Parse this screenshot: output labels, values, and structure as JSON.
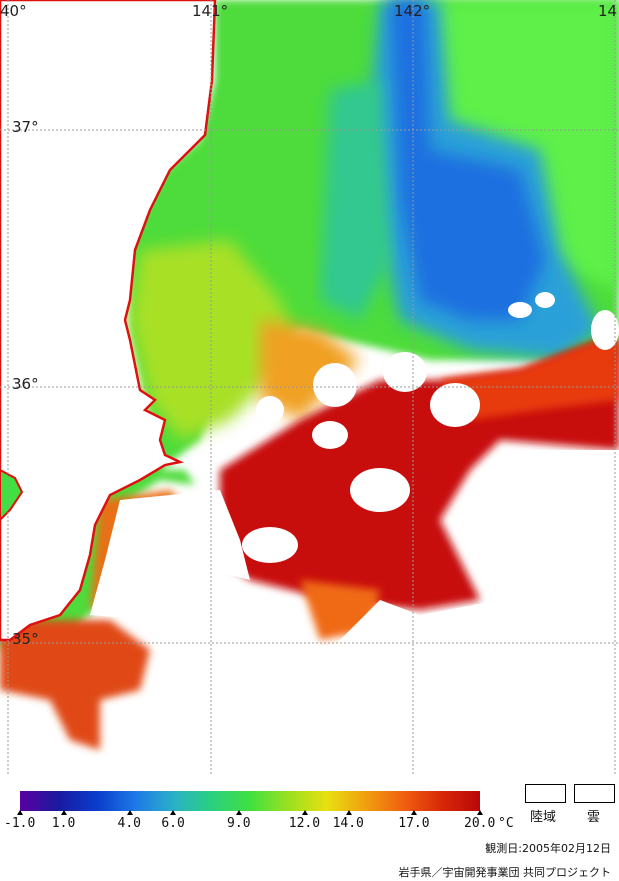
{
  "map": {
    "longitude_labels": [
      "40°",
      "141°",
      "142°",
      "14"
    ],
    "latitude_labels": [
      "37°",
      "36°",
      "35°"
    ]
  },
  "colorbar": {
    "min": -1.0,
    "max": 20.0,
    "unit": "°C",
    "tick_values": [
      -1.0,
      1.0,
      4.0,
      6.0,
      9.0,
      12.0,
      14.0,
      17.0,
      20.0
    ],
    "tick_labels": [
      "-1.0",
      "1.0",
      "4.0",
      "6.0",
      "9.0",
      "12.0",
      "14.0",
      "17.0",
      "20.0"
    ],
    "colors": [
      "#5a00a0",
      "#1a1aa0",
      "#0a3ccc",
      "#1e78e6",
      "#2ab0c8",
      "#2ad080",
      "#40e040",
      "#9ae020",
      "#e8e010",
      "#f0a010",
      "#f06010",
      "#d82808",
      "#b80808"
    ]
  },
  "legend": {
    "land_label": "陸域",
    "cloud_label": "雲"
  },
  "footer": {
    "observation_date": "観測日:2005年02月12日",
    "credit": "岩手県／宇宙開発事業団 共同プロジェクト"
  }
}
